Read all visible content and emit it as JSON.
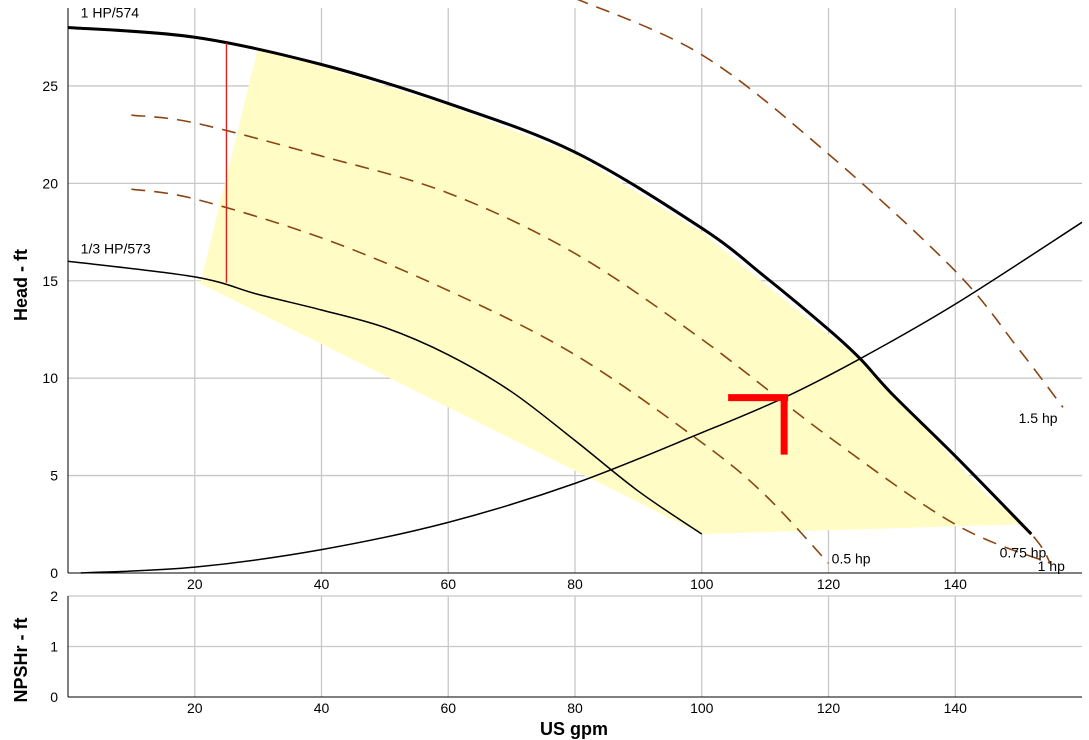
{
  "chart_data": [
    {
      "type": "line",
      "panel": "head",
      "xlabel": "US gpm",
      "ylabel": "Head - ft",
      "xlim": [
        0,
        160
      ],
      "ylim": [
        0,
        29
      ],
      "x_ticks": [
        20,
        40,
        60,
        80,
        100,
        120,
        140
      ],
      "y_ticks": [
        0,
        5,
        10,
        15,
        20,
        25
      ],
      "grid": true,
      "colors": {
        "pump_curve": "#000000",
        "hp_curve": "#8B4513",
        "operating_region": "#FFFCC6",
        "npsh_limit": "#E0201B",
        "operating_point": "#FF0000",
        "grid": "#C8C8C8"
      },
      "operating_region": [
        [
          21,
          15
        ],
        [
          30,
          27
        ],
        [
          40,
          26
        ],
        [
          60,
          24
        ],
        [
          80,
          21.5
        ],
        [
          100,
          17.5
        ],
        [
          115,
          13.5
        ],
        [
          125,
          11
        ],
        [
          135,
          7.5
        ],
        [
          145,
          4
        ],
        [
          151,
          2.5
        ],
        [
          100,
          2
        ],
        [
          20,
          15
        ]
      ],
      "npsh_line": {
        "x": 25,
        "y_from": 14.9,
        "y_to": 27.2
      },
      "operating_point": {
        "x": 113,
        "y": 9
      },
      "series": [
        {
          "name": "1 HP/574",
          "style": "solid-bold",
          "label_x": 2,
          "label_y": 28.5,
          "x": [
            0,
            20,
            40,
            60,
            80,
            100,
            110,
            120,
            125,
            130,
            140,
            152
          ],
          "y": [
            28,
            27.5,
            26.1,
            24.1,
            21.6,
            17.7,
            15.2,
            12.5,
            11,
            9.2,
            6,
            2
          ]
        },
        {
          "name": "1/3 HP/573",
          "style": "solid",
          "label_x": 2,
          "label_y": 16.4,
          "x": [
            0,
            20,
            30,
            40,
            50,
            60,
            70,
            80,
            90,
            100
          ],
          "y": [
            16,
            15.2,
            14.3,
            13.5,
            12.6,
            11.2,
            9.3,
            6.8,
            4.2,
            2
          ]
        },
        {
          "name": "",
          "style": "system",
          "x": [
            2,
            20,
            40,
            60,
            80,
            100,
            113,
            125,
            140,
            160
          ],
          "y": [
            0,
            0.3,
            1.2,
            2.6,
            4.6,
            7.2,
            9,
            11,
            13.8,
            18
          ]
        },
        {
          "name": "0.5 hp",
          "style": "dashed",
          "label_x": 120.5,
          "label_y": 0.5,
          "x": [
            10,
            20,
            40,
            60,
            80,
            100,
            110,
            120
          ],
          "y": [
            19.7,
            19.2,
            17.2,
            14.5,
            11.2,
            6.7,
            4.0,
            0.5
          ]
        },
        {
          "name": "0.75 hp",
          "style": "dashed",
          "label_x": 147,
          "label_y": 0.8,
          "x": [
            10,
            20,
            40,
            60,
            80,
            100,
            120,
            140,
            155
          ],
          "y": [
            23.5,
            23.1,
            21.4,
            19.5,
            16.4,
            12,
            7,
            2.5,
            0.5
          ]
        },
        {
          "name": "1 hp",
          "style": "dashed",
          "label_x": 153,
          "label_y": 0.1,
          "x": [
            0,
            20,
            40,
            60,
            80,
            100,
            110,
            120,
            125,
            130,
            140,
            152,
            155
          ],
          "y": [
            28,
            27.5,
            26.1,
            24.1,
            21.6,
            17.7,
            15.2,
            12.5,
            11,
            9.2,
            6,
            2,
            0.5
          ]
        },
        {
          "name": "1.5 hp",
          "style": "dashed",
          "label_x": 150,
          "label_y": 7.7,
          "x": [
            80,
            100,
            120,
            140,
            150,
            157
          ],
          "y": [
            29.5,
            26.6,
            21.5,
            15.5,
            11.5,
            8.5
          ]
        }
      ]
    },
    {
      "type": "line",
      "panel": "npsh",
      "xlabel": "US gpm",
      "ylabel": "NPSHr - ft",
      "xlim": [
        0,
        160
      ],
      "ylim": [
        0,
        2
      ],
      "x_ticks": [
        20,
        40,
        60,
        80,
        100,
        120,
        140
      ],
      "y_ticks": [
        0,
        1,
        2
      ],
      "grid": true,
      "series": []
    }
  ]
}
